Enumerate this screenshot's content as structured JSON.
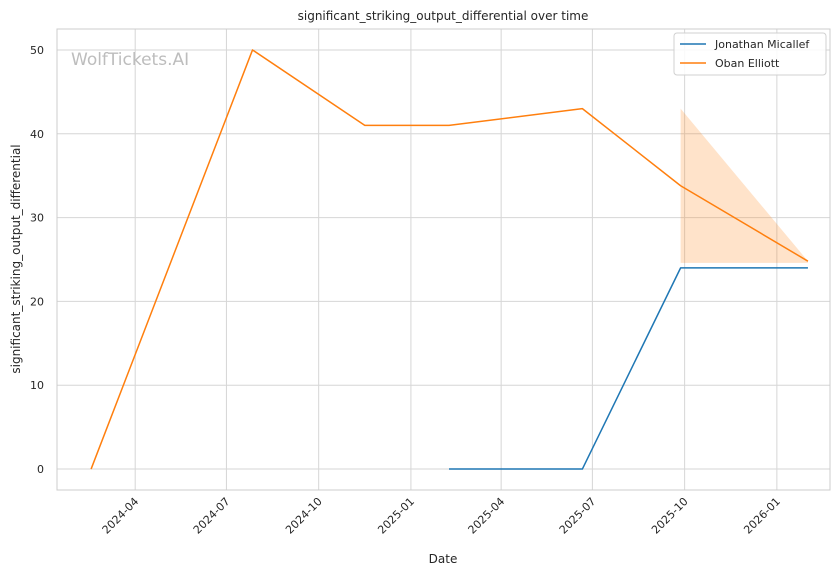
{
  "chart_data": {
    "type": "line",
    "title": "significant_striking_output_differential over time",
    "xlabel": "Date",
    "ylabel": "significant_striking_output_differential",
    "watermark": "WolfTickets.AI",
    "xlim": [
      "2024-01-14",
      "2026-02-23"
    ],
    "ylim": [
      -2.5,
      52.5
    ],
    "x_ticks": [
      "2024-04-01",
      "2024-07-01",
      "2024-10-01",
      "2025-01-01",
      "2025-04-01",
      "2025-07-01",
      "2025-10-01",
      "2026-01-01"
    ],
    "x_tick_labels": [
      "2024-04",
      "2024-07",
      "2024-10",
      "2025-01",
      "2025-04",
      "2025-07",
      "2025-10",
      "2026-01"
    ],
    "y_ticks": [
      0,
      10,
      20,
      30,
      40,
      50
    ],
    "y_tick_labels": [
      "0",
      "10",
      "20",
      "30",
      "40",
      "50"
    ],
    "grid": true,
    "legend_position": "top-right",
    "series": [
      {
        "name": "Jonathan Micallef",
        "color": "#1f77b4",
        "x": [
          "2025-02-08",
          "2025-06-21",
          "2025-09-27",
          "2026-02-01"
        ],
        "y": [
          0,
          0,
          24,
          24
        ]
      },
      {
        "name": "Oban Elliott",
        "color": "#ff7f0e",
        "x": [
          "2024-02-17",
          "2024-07-27",
          "2024-11-16",
          "2025-02-08",
          "2025-06-21",
          "2025-09-27",
          "2026-02-01"
        ],
        "y": [
          0,
          50,
          41,
          41,
          43,
          33.8,
          24.8
        ],
        "band": {
          "x": [
            "2025-09-27",
            "2026-02-01"
          ],
          "lower": [
            24.6,
            24.6
          ],
          "upper": [
            43,
            24.8
          ]
        }
      }
    ]
  }
}
